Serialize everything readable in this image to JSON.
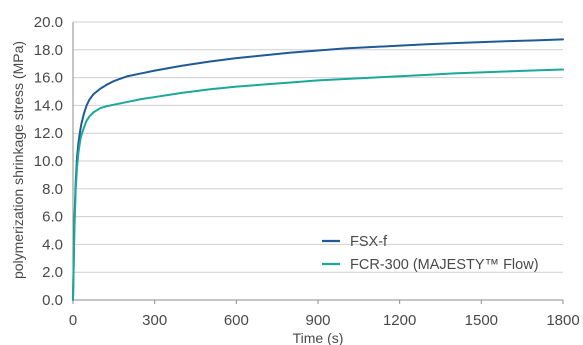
{
  "chart_data": {
    "type": "line",
    "title": "",
    "xlabel": "Time (s)",
    "ylabel": "polymerization shrinkage stress (MPa)",
    "xlim": [
      0,
      1800
    ],
    "ylim": [
      0,
      20
    ],
    "x_ticks": [
      "0",
      "300",
      "600",
      "900",
      "1200",
      "1500",
      "1800"
    ],
    "y_ticks": [
      "0.0",
      "2.0",
      "4.0",
      "6.0",
      "8.0",
      "10.0",
      "12.0",
      "14.0",
      "16.0",
      "18.0",
      "20.0"
    ],
    "x_tick_values": [
      0,
      300,
      600,
      900,
      1200,
      1500,
      1800
    ],
    "y_tick_values": [
      0,
      2,
      4,
      6,
      8,
      10,
      12,
      14,
      16,
      18,
      20
    ],
    "grid": "horizontal",
    "legend_position": "bottom-right",
    "series": [
      {
        "name": "FSX-f",
        "color": "#1f5a96",
        "x": [
          0,
          5,
          10,
          15,
          20,
          25,
          30,
          40,
          50,
          60,
          75,
          100,
          125,
          150,
          200,
          250,
          300,
          400,
          500,
          600,
          700,
          800,
          900,
          1000,
          1100,
          1200,
          1300,
          1400,
          1500,
          1600,
          1700,
          1800
        ],
        "y": [
          0,
          5.5,
          8.5,
          10.3,
          11.3,
          12.0,
          12.6,
          13.4,
          14.0,
          14.4,
          14.8,
          15.2,
          15.5,
          15.75,
          16.1,
          16.3,
          16.5,
          16.85,
          17.15,
          17.4,
          17.6,
          17.8,
          17.95,
          18.1,
          18.2,
          18.3,
          18.4,
          18.48,
          18.55,
          18.62,
          18.68,
          18.75
        ]
      },
      {
        "name": "FCR-300 (MAJESTY™ Flow)",
        "color": "#1aa89a",
        "x": [
          0,
          5,
          10,
          15,
          20,
          25,
          30,
          40,
          50,
          60,
          75,
          100,
          125,
          150,
          200,
          250,
          300,
          400,
          500,
          600,
          700,
          800,
          900,
          1000,
          1100,
          1200,
          1300,
          1400,
          1500,
          1600,
          1700,
          1800
        ],
        "y": [
          0,
          5.0,
          8.0,
          9.6,
          10.6,
          11.3,
          11.8,
          12.4,
          12.9,
          13.2,
          13.5,
          13.8,
          13.95,
          14.05,
          14.25,
          14.45,
          14.6,
          14.9,
          15.15,
          15.35,
          15.5,
          15.65,
          15.8,
          15.9,
          16.0,
          16.1,
          16.2,
          16.3,
          16.38,
          16.45,
          16.52,
          16.58
        ]
      }
    ]
  }
}
